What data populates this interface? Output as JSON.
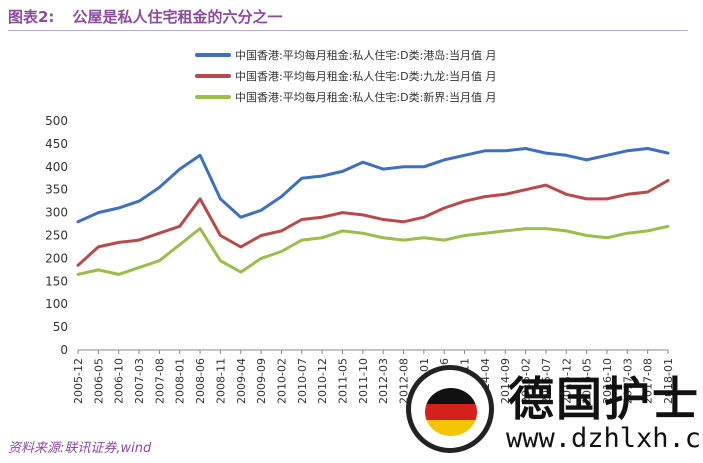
{
  "header": {
    "figure_label": "图表2:",
    "title": "公屋是私人住宅租金的六分之一"
  },
  "source": "资料来源:联讯证券,wind",
  "logo": {
    "text_cn": "德国护士",
    "url": "www.dzhlxh.com"
  },
  "colors": {
    "title": "#8b4a9c",
    "hk_island": "#3f6fbf",
    "kowloon": "#b84a4a",
    "nt": "#9bbd4a"
  },
  "chart_data": {
    "type": "line",
    "x": [
      "2005-12",
      "2006-05",
      "2006-10",
      "2007-03",
      "2007-08",
      "2008-01",
      "2008-06",
      "2008-11",
      "2009-04",
      "2009-09",
      "2010-02",
      "2010-07",
      "2010-12",
      "2011-05",
      "2011-10",
      "2012-03",
      "2012-08",
      "2013-01",
      "2013-06",
      "2013-11",
      "2014-04",
      "2014-09",
      "2015-02",
      "2015-07",
      "2015-12",
      "2016-05",
      "2016-10",
      "2017-03",
      "2017-08",
      "2018-01"
    ],
    "yticks": [
      0,
      50,
      100,
      150,
      200,
      250,
      300,
      350,
      400,
      450,
      500
    ],
    "ylim": [
      0,
      500
    ],
    "series": [
      {
        "name": "中国香港:平均每月租金:私人住宅:D类:港岛:当月值 月",
        "color": "#3f6fbf",
        "values": [
          280,
          300,
          310,
          325,
          355,
          395,
          425,
          330,
          290,
          305,
          335,
          375,
          380,
          390,
          410,
          395,
          400,
          400,
          415,
          425,
          435,
          435,
          440,
          430,
          425,
          415,
          425,
          435,
          440,
          430
        ]
      },
      {
        "name": "中国香港:平均每月租金:私人住宅:D类:九龙:当月值 月",
        "color": "#b84a4a",
        "values": [
          185,
          225,
          235,
          240,
          255,
          270,
          330,
          250,
          225,
          250,
          260,
          285,
          290,
          300,
          295,
          285,
          280,
          290,
          310,
          325,
          335,
          340,
          350,
          360,
          340,
          330,
          330,
          340,
          345,
          370
        ]
      },
      {
        "name": "中国香港:平均每月租金:私人住宅:D类:新界:当月值 月",
        "color": "#9bbd4a",
        "values": [
          165,
          175,
          165,
          180,
          195,
          230,
          265,
          195,
          170,
          200,
          215,
          240,
          245,
          260,
          255,
          245,
          240,
          245,
          240,
          250,
          255,
          260,
          265,
          265,
          260,
          250,
          245,
          255,
          260,
          270
        ]
      }
    ]
  }
}
